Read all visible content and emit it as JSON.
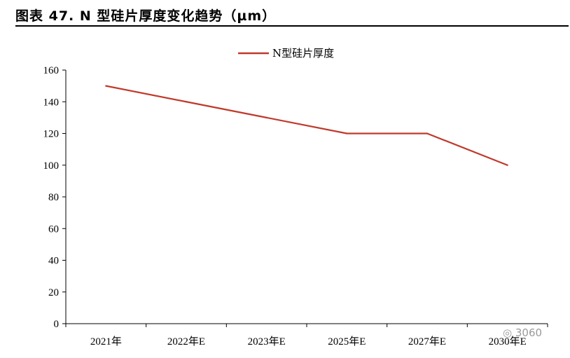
{
  "title": "图表 47. N 型硅片厚度变化趋势（µm）",
  "chart_data": {
    "type": "line",
    "categories": [
      "2021年",
      "2022年E",
      "2023年E",
      "2025年E",
      "2027年E",
      "2030年E"
    ],
    "series": [
      {
        "name": "N型硅片厚度",
        "values": [
          150,
          140,
          130,
          120,
          120,
          100
        ],
        "color": "#C0392B"
      }
    ],
    "ylim": [
      0,
      160
    ],
    "yticks": [
      0,
      20,
      40,
      60,
      80,
      100,
      120,
      140,
      160
    ],
    "grid": false,
    "legend": "top-center"
  },
  "watermark": "3060",
  "colors": {
    "series": "#C0392B",
    "axis": "#000000"
  }
}
